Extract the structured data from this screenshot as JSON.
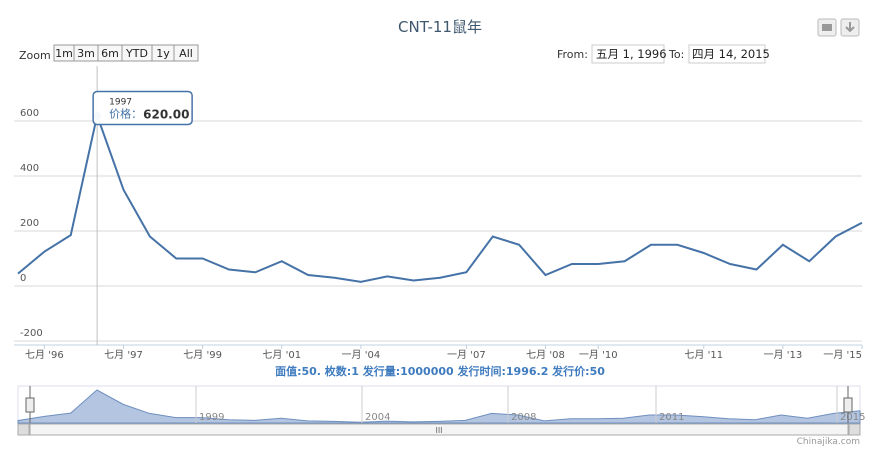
{
  "chart_data": {
    "type": "line",
    "title": "CNT-11鼠年",
    "zoom": {
      "label": "Zoom",
      "buttons": [
        "1m",
        "3m",
        "6m",
        "YTD",
        "1y",
        "All"
      ]
    },
    "range": {
      "from_label": "From:",
      "from": "五月 1, 1996",
      "to_label": "To:",
      "to": "四月 14, 2015"
    },
    "categories": [
      null,
      "七月 '96",
      null,
      null,
      "七月 '97",
      null,
      null,
      "七月 '99",
      null,
      null,
      "七月 '01",
      null,
      null,
      "一月 '04",
      null,
      null,
      null,
      "一月 '07",
      null,
      null,
      "七月 '08",
      null,
      "一月 '10",
      null,
      null,
      null,
      "七月 '11",
      null,
      null,
      "一月 '13",
      null,
      null,
      "一月 '15"
    ],
    "series": [
      {
        "color": "#4572a7",
        "values": [
          45,
          125,
          185,
          620,
          350,
          180,
          100,
          100,
          60,
          50,
          90,
          40,
          30,
          15,
          35,
          20,
          30,
          50,
          180,
          150,
          40,
          80,
          80,
          90,
          150,
          150,
          120,
          80,
          60,
          150,
          90,
          180,
          230
        ]
      }
    ],
    "ylim": [
      -200,
      800
    ],
    "yticks": [
      -200,
      0,
      200,
      400,
      600
    ],
    "grid": true,
    "tooltip": {
      "x": "1997",
      "label": "价格：",
      "value": "620.00"
    },
    "caption": "面值:50. 枚数:1 发行量:1000000 发行时间:1996.2 发行价:50",
    "navigator": {
      "labels": [
        "1999",
        "2004",
        "2008",
        "2011",
        "2015"
      ],
      "scroll_label": "III"
    },
    "credit": "Chinajika.com"
  }
}
